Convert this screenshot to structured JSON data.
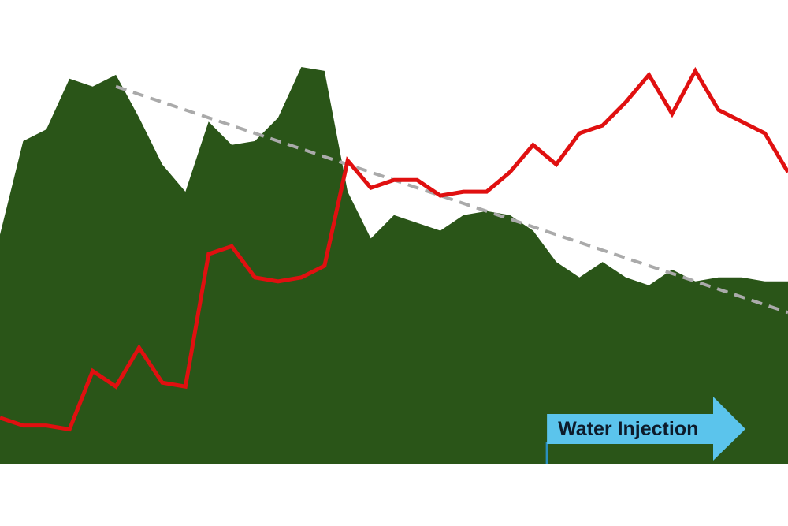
{
  "chart_data": {
    "type": "area",
    "title": "",
    "xlabel": "",
    "ylabel": "",
    "x": [
      0,
      1,
      2,
      3,
      4,
      5,
      6,
      7,
      8,
      9,
      10,
      11,
      12,
      13,
      14,
      15,
      16,
      17,
      18,
      19,
      20,
      21,
      22,
      23,
      24,
      25,
      26,
      27,
      28,
      29,
      30,
      31,
      32,
      33,
      34
    ],
    "xlim": [
      0,
      34
    ],
    "ylim": [
      0,
      100
    ],
    "grid": false,
    "legend": "none",
    "series": [
      {
        "kind": "area",
        "color": "#2a5518",
        "values": [
          59,
          83,
          86,
          99,
          97,
          100,
          89,
          77,
          70,
          88,
          82,
          83,
          89,
          102,
          101,
          70,
          58,
          64,
          62,
          60,
          64,
          65,
          64,
          60,
          52,
          48,
          52,
          48,
          46,
          50,
          47,
          48,
          48,
          47,
          47
        ]
      },
      {
        "kind": "line",
        "color": "#e01010",
        "values": [
          12,
          10,
          10,
          9,
          24,
          20,
          30,
          21,
          20,
          54,
          56,
          48,
          47,
          48,
          51,
          78,
          71,
          73,
          73,
          69,
          70,
          70,
          75,
          82,
          77,
          85,
          87,
          93,
          100,
          90,
          101,
          91,
          88,
          85,
          75
        ]
      },
      {
        "kind": "trend",
        "style": "dashed",
        "color": "#aaaaaa",
        "x_start": 5,
        "x_end": 34,
        "y_start": 97,
        "y_end": 39
      }
    ],
    "annotations": [
      {
        "text": "Water Injection",
        "x": 23.6,
        "arrow_color": "#5bc4ec",
        "icon": "right-arrow-icon"
      }
    ]
  }
}
